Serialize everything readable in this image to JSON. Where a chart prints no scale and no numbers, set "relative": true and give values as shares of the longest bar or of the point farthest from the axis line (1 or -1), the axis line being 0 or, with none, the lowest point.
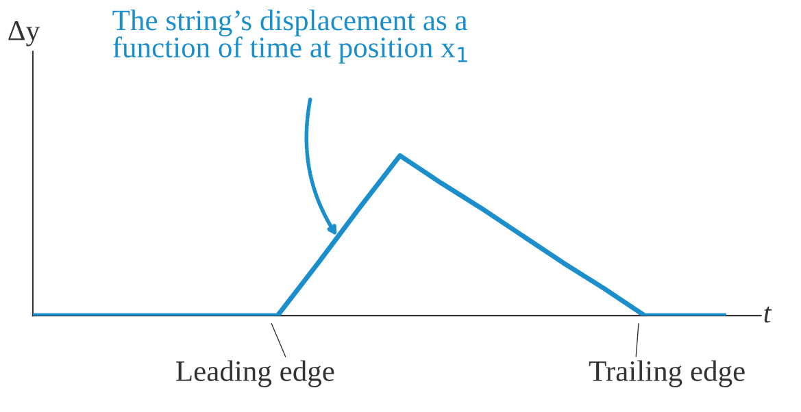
{
  "chart_data": {
    "type": "line",
    "relative": true,
    "xlabel": "t",
    "ylabel": "Δy",
    "marker": "none",
    "line_style": "solid",
    "categories": [
      null,
      null,
      null,
      null,
      null,
      null,
      null,
      null,
      null,
      null,
      null,
      null,
      null,
      null,
      null,
      null,
      null,
      null
    ],
    "series": [
      {
        "color": "#1a8fcb",
        "values": [
          0,
          0,
          0,
          0,
          0,
          0,
          0,
          0.33,
          0.67,
          1,
          0.83,
          0.67,
          0.5,
          0.33,
          0.17,
          0,
          0,
          0
        ]
      }
    ],
    "annotations": [
      "The string’s displacement as a\nfunction of time at position x$_{1}$",
      "Leading edge",
      "Trailing edge"
    ]
  }
}
